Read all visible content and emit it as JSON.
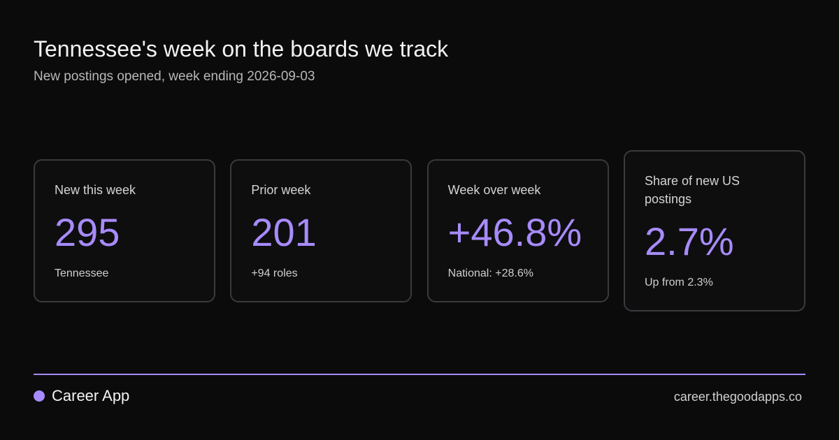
{
  "header": {
    "title": "Tennessee's week on the boards we track",
    "subtitle": "New postings opened, week ending 2026-09-03"
  },
  "cards": [
    {
      "label": "New this week",
      "value": "295",
      "note": "Tennessee"
    },
    {
      "label": "Prior week",
      "value": "201",
      "note": "+94 roles"
    },
    {
      "label": "Week over week",
      "value": "+46.8%",
      "note": "National: +28.6%"
    },
    {
      "label": "Share of new US postings",
      "value": "2.7%",
      "note": "Up from 2.3%"
    }
  ],
  "footer": {
    "brand": "Career App",
    "url": "career.thegoodapps.co"
  }
}
